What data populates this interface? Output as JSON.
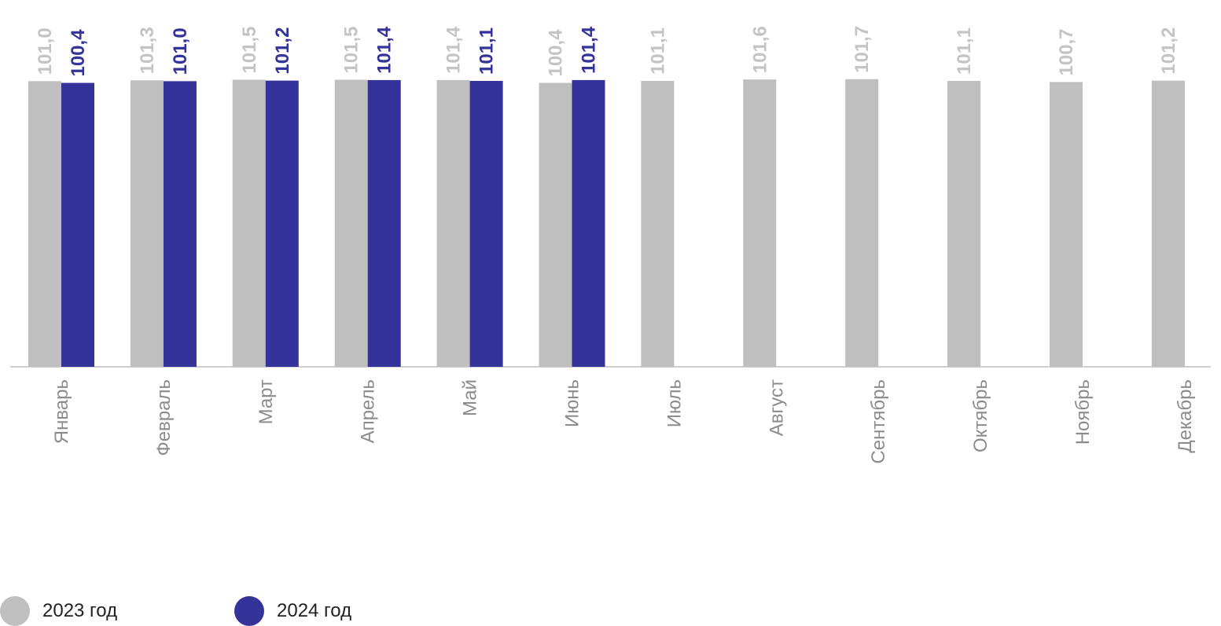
{
  "chart_data": {
    "type": "bar",
    "categories": [
      "Январь",
      "Февраль",
      "Март",
      "Апрель",
      "Май",
      "Июнь",
      "Июль",
      "Август",
      "Сентябрь",
      "Октябрь",
      "Ноябрь",
      "Декабрь"
    ],
    "series": [
      {
        "name": "2023 год",
        "color": "#bfbfbf",
        "values": [
          101.0,
          101.3,
          101.5,
          101.5,
          101.4,
          100.4,
          101.1,
          101.6,
          101.7,
          101.1,
          100.7,
          101.2
        ],
        "labels": [
          "101,0",
          "101,3",
          "101,5",
          "101,5",
          "101,4",
          "100,4",
          "101,1",
          "101,6",
          "101,7",
          "101,1",
          "100,7",
          "101,2"
        ]
      },
      {
        "name": "2024 год",
        "color": "#333399",
        "values": [
          100.4,
          101.0,
          101.2,
          101.4,
          101.1,
          101.4,
          null,
          null,
          null,
          null,
          null,
          null
        ],
        "labels": [
          "100,4",
          "101,0",
          "101,2",
          "101,4",
          "101,1",
          "101,4",
          "",
          "",
          "",
          "",
          "",
          ""
        ]
      }
    ],
    "title": "",
    "xlabel": "",
    "ylabel": "",
    "grid": false,
    "legend": "bottom-left"
  }
}
